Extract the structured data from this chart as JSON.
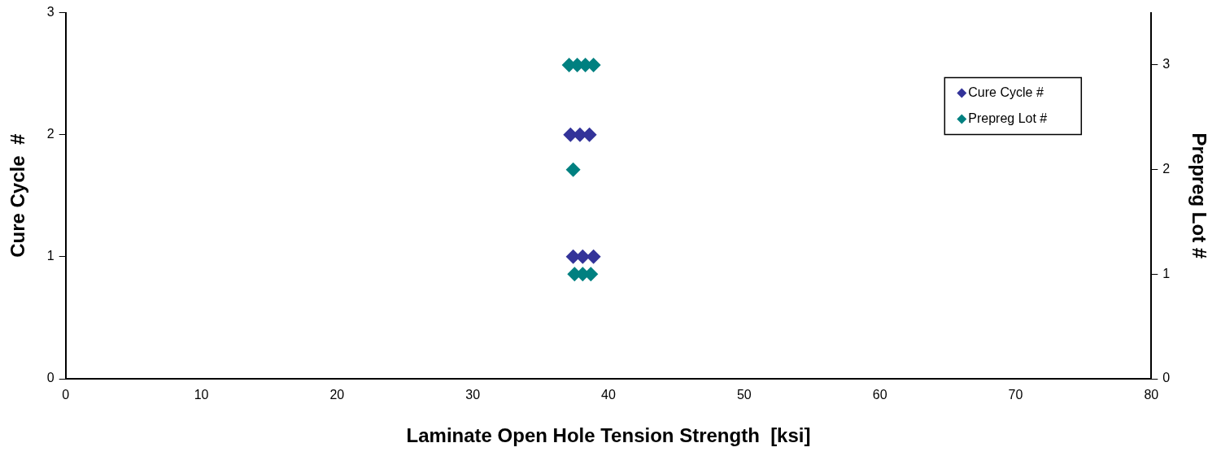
{
  "chart_data": {
    "type": "scatter",
    "xlabel": "Laminate Open Hole Tension Strength  [ksi]",
    "ylabel": "Cure Cycle  #",
    "y2label": "Prepreg Lot #",
    "xlim": [
      0,
      80
    ],
    "xticks": [
      0,
      10,
      20,
      30,
      40,
      50,
      60,
      70,
      80
    ],
    "ylim": [
      0,
      3
    ],
    "yticks": [
      0,
      1,
      2,
      3
    ],
    "y2lim": [
      0,
      3.5
    ],
    "y2ticks": [
      0,
      1,
      2,
      3
    ],
    "grid": false,
    "legend": "top right",
    "marker": "diamond",
    "series": [
      {
        "name": "Cure Cycle #",
        "color": "#333399",
        "x": [
          37.2,
          37.9,
          38.6,
          37.4,
          38.1,
          38.9
        ],
        "values": [
          2,
          2,
          2,
          1,
          1,
          1
        ]
      },
      {
        "name": "Prepreg Lot #",
        "color": "#008080",
        "axis": "y2",
        "x": [
          37.1,
          37.7,
          38.3,
          38.9,
          37.4,
          37.5,
          38.1,
          38.7
        ],
        "values": [
          3,
          3,
          3,
          3,
          2,
          1,
          1,
          1
        ]
      }
    ]
  }
}
